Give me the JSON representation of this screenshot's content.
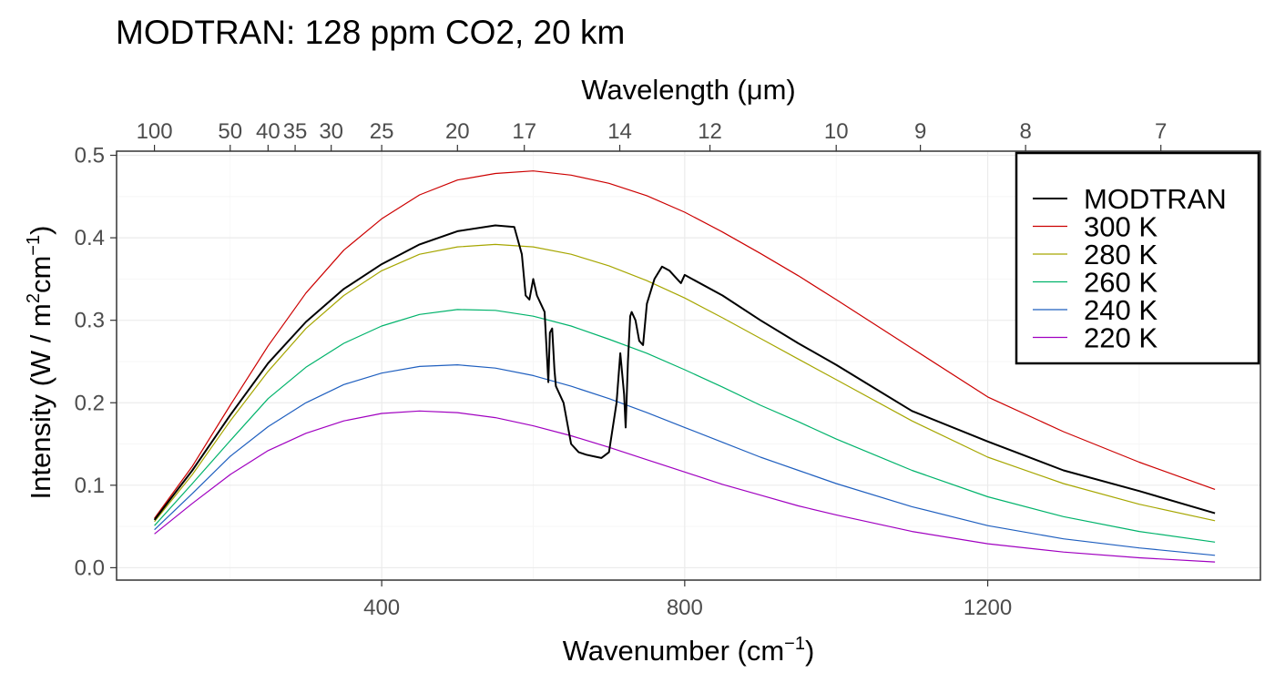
{
  "chart_data": {
    "type": "line",
    "title": "MODTRAN: 128 ppm CO2, 20 km",
    "xlabel": "Wavenumber (cm",
    "xlabel_sup": "−1",
    "xlabel_close": ")",
    "ylabel": "Intensity (W / m",
    "ylabel_sup1": "2",
    "ylabel_mid": "cm",
    "ylabel_sup2": "−1",
    "ylabel_close": ")",
    "top_axis_label": "Wavelength (μm)",
    "xlim": [
      50,
      1560
    ],
    "ylim": [
      -0.015,
      0.505
    ],
    "x_ticks": [
      {
        "value": 400,
        "label": "400"
      },
      {
        "value": 800,
        "label": "800"
      },
      {
        "value": 1200,
        "label": "1200"
      }
    ],
    "y_ticks": [
      {
        "value": 0.0,
        "label": "0.0"
      },
      {
        "value": 0.1,
        "label": "0.1"
      },
      {
        "value": 0.2,
        "label": "0.2"
      },
      {
        "value": 0.3,
        "label": "0.3"
      },
      {
        "value": 0.4,
        "label": "0.4"
      },
      {
        "value": 0.5,
        "label": "0.5"
      }
    ],
    "top_ticks": [
      "100",
      "50",
      "40",
      "35",
      "30",
      "25",
      "20",
      "17",
      "14",
      "12",
      "10",
      "9",
      "8",
      "7"
    ],
    "grid": true,
    "legend_position": "top-right",
    "series": [
      {
        "name": "MODTRAN",
        "color": "#000000",
        "x": [
          100,
          150,
          200,
          250,
          300,
          350,
          400,
          450,
          500,
          550,
          575,
          585,
          590,
          595,
          600,
          605,
          610,
          615,
          620,
          622,
          625,
          628,
          630,
          640,
          650,
          660,
          670,
          680,
          690,
          700,
          710,
          715,
          720,
          722,
          725,
          728,
          730,
          735,
          740,
          745,
          750,
          760,
          770,
          780,
          790,
          795,
          800,
          850,
          900,
          950,
          1000,
          1050,
          1100,
          1200,
          1300,
          1400,
          1500
        ],
        "y": [
          0.058,
          0.118,
          0.185,
          0.248,
          0.298,
          0.338,
          0.368,
          0.392,
          0.408,
          0.415,
          0.413,
          0.38,
          0.33,
          0.325,
          0.35,
          0.33,
          0.32,
          0.31,
          0.225,
          0.285,
          0.29,
          0.24,
          0.22,
          0.2,
          0.15,
          0.14,
          0.137,
          0.135,
          0.133,
          0.14,
          0.2,
          0.26,
          0.21,
          0.17,
          0.25,
          0.305,
          0.31,
          0.3,
          0.275,
          0.27,
          0.32,
          0.35,
          0.365,
          0.36,
          0.35,
          0.345,
          0.355,
          0.33,
          0.3,
          0.272,
          0.246,
          0.218,
          0.19,
          0.153,
          0.118,
          0.093,
          0.066
        ]
      },
      {
        "name": "300 K",
        "color": "#cc0000",
        "x": [
          100,
          150,
          200,
          250,
          300,
          350,
          400,
          450,
          500,
          550,
          600,
          650,
          700,
          750,
          800,
          850,
          900,
          950,
          1000,
          1100,
          1200,
          1300,
          1400,
          1500
        ],
        "y": [
          0.06,
          0.123,
          0.197,
          0.269,
          0.333,
          0.385,
          0.423,
          0.452,
          0.47,
          0.478,
          0.481,
          0.476,
          0.466,
          0.451,
          0.431,
          0.407,
          0.381,
          0.354,
          0.325,
          0.266,
          0.207,
          0.165,
          0.128,
          0.095
        ]
      },
      {
        "name": "280 K",
        "color": "#a6a600",
        "x": [
          100,
          150,
          200,
          250,
          300,
          350,
          400,
          450,
          500,
          550,
          600,
          650,
          700,
          750,
          800,
          850,
          900,
          950,
          1000,
          1100,
          1200,
          1300,
          1400,
          1500
        ],
        "y": [
          0.056,
          0.113,
          0.178,
          0.238,
          0.29,
          0.33,
          0.36,
          0.38,
          0.389,
          0.392,
          0.389,
          0.38,
          0.366,
          0.348,
          0.327,
          0.303,
          0.278,
          0.253,
          0.228,
          0.178,
          0.134,
          0.102,
          0.077,
          0.057
        ]
      },
      {
        "name": "260 K",
        "color": "#00b36b",
        "x": [
          100,
          150,
          200,
          250,
          300,
          350,
          400,
          450,
          500,
          550,
          600,
          650,
          700,
          750,
          800,
          850,
          900,
          950,
          1000,
          1100,
          1200,
          1300,
          1400,
          1500
        ],
        "y": [
          0.051,
          0.102,
          0.154,
          0.205,
          0.243,
          0.272,
          0.293,
          0.307,
          0.313,
          0.312,
          0.305,
          0.293,
          0.277,
          0.26,
          0.24,
          0.219,
          0.197,
          0.177,
          0.156,
          0.118,
          0.086,
          0.062,
          0.044,
          0.031
        ]
      },
      {
        "name": "240 K",
        "color": "#1f5fbf",
        "x": [
          100,
          150,
          200,
          250,
          300,
          350,
          400,
          450,
          500,
          550,
          600,
          650,
          700,
          750,
          800,
          850,
          900,
          950,
          1000,
          1100,
          1200,
          1300,
          1400,
          1500
        ],
        "y": [
          0.046,
          0.09,
          0.135,
          0.171,
          0.2,
          0.222,
          0.236,
          0.244,
          0.246,
          0.242,
          0.233,
          0.22,
          0.205,
          0.188,
          0.17,
          0.152,
          0.134,
          0.118,
          0.102,
          0.074,
          0.051,
          0.035,
          0.024,
          0.015
        ]
      },
      {
        "name": "220 K",
        "color": "#a000c0",
        "x": [
          100,
          150,
          200,
          250,
          300,
          350,
          400,
          450,
          500,
          550,
          600,
          650,
          700,
          750,
          800,
          850,
          900,
          950,
          1000,
          1100,
          1200,
          1300,
          1400,
          1500
        ],
        "y": [
          0.041,
          0.078,
          0.113,
          0.142,
          0.163,
          0.178,
          0.187,
          0.19,
          0.188,
          0.182,
          0.172,
          0.16,
          0.146,
          0.131,
          0.116,
          0.101,
          0.088,
          0.075,
          0.064,
          0.044,
          0.029,
          0.019,
          0.012,
          0.007
        ]
      }
    ]
  }
}
